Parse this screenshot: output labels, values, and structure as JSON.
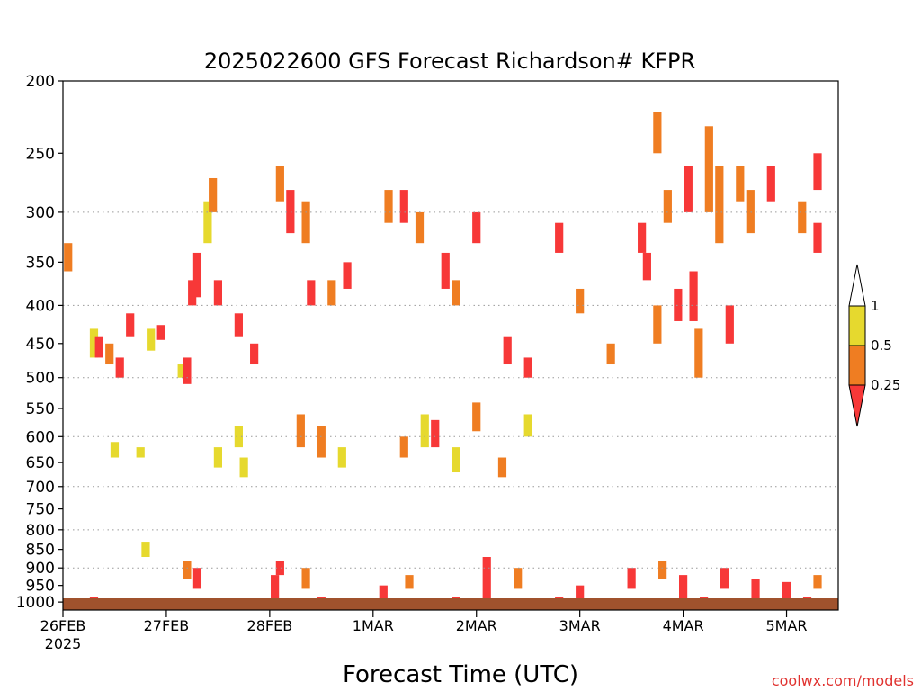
{
  "chart_data": {
    "type": "heatmap",
    "title": "2025022600 GFS Forecast Richardson# KFPR",
    "xlabel": "Forecast Time (UTC)",
    "ylabel": "",
    "credit": "coolwx.com/models",
    "x_start_label": "26FEB",
    "x_start_year": "2025",
    "x_ticks": [
      {
        "day": 0,
        "label": "26FEB"
      },
      {
        "day": 1,
        "label": "27FEB"
      },
      {
        "day": 2,
        "label": "28FEB"
      },
      {
        "day": 3,
        "label": "1MAR"
      },
      {
        "day": 4,
        "label": "2MAR"
      },
      {
        "day": 5,
        "label": "3MAR"
      },
      {
        "day": 6,
        "label": "4MAR"
      },
      {
        "day": 7,
        "label": "5MAR"
      }
    ],
    "xlim_days": [
      0,
      7.5
    ],
    "y_ticks_hpa": [
      200,
      250,
      300,
      350,
      400,
      450,
      500,
      550,
      600,
      650,
      700,
      750,
      800,
      850,
      900,
      950,
      1000
    ],
    "ylim_hpa": [
      200,
      1025
    ],
    "y_axis": "pressure",
    "dotted_grid_hpa": [
      300,
      400,
      500,
      600,
      700,
      800,
      900
    ],
    "colorbar": {
      "bins": [
        {
          "range": "> 1",
          "color": "#ffffff"
        },
        {
          "range": "0.5-1",
          "color": "#e6d92e"
        },
        {
          "range": "0.25-0.5",
          "color": "#ef7d22"
        },
        {
          "range": "< 0.25",
          "color": "#f73838"
        }
      ],
      "tick_labels": [
        "1",
        "0.5",
        "0.25"
      ]
    },
    "ground_color": "#a0522d",
    "cells": [
      {
        "t": 0.05,
        "p0": 330,
        "p1": 360,
        "v": "orange"
      },
      {
        "t": 0.3,
        "p0": 430,
        "p1": 470,
        "v": "yellow"
      },
      {
        "t": 0.35,
        "p0": 440,
        "p1": 470,
        "v": "red"
      },
      {
        "t": 0.45,
        "p0": 450,
        "p1": 480,
        "v": "orange"
      },
      {
        "t": 0.55,
        "p0": 470,
        "p1": 500,
        "v": "red"
      },
      {
        "t": 0.65,
        "p0": 410,
        "p1": 440,
        "v": "red"
      },
      {
        "t": 0.85,
        "p0": 430,
        "p1": 460,
        "v": "yellow"
      },
      {
        "t": 0.95,
        "p0": 425,
        "p1": 445,
        "v": "red"
      },
      {
        "t": 1.15,
        "p0": 480,
        "p1": 500,
        "v": "yellow"
      },
      {
        "t": 1.2,
        "p0": 470,
        "p1": 510,
        "v": "red"
      },
      {
        "t": 1.25,
        "p0": 370,
        "p1": 400,
        "v": "red"
      },
      {
        "t": 1.3,
        "p0": 340,
        "p1": 390,
        "v": "red"
      },
      {
        "t": 1.4,
        "p0": 290,
        "p1": 330,
        "v": "yellow"
      },
      {
        "t": 1.5,
        "p0": 370,
        "p1": 400,
        "v": "red"
      },
      {
        "t": 1.45,
        "p0": 270,
        "p1": 300,
        "v": "orange"
      },
      {
        "t": 1.7,
        "p0": 410,
        "p1": 440,
        "v": "red"
      },
      {
        "t": 1.85,
        "p0": 450,
        "p1": 480,
        "v": "red"
      },
      {
        "t": 2.1,
        "p0": 260,
        "p1": 290,
        "v": "orange"
      },
      {
        "t": 2.2,
        "p0": 280,
        "p1": 320,
        "v": "red"
      },
      {
        "t": 2.35,
        "p0": 290,
        "p1": 330,
        "v": "orange"
      },
      {
        "t": 2.4,
        "p0": 370,
        "p1": 400,
        "v": "red"
      },
      {
        "t": 2.6,
        "p0": 370,
        "p1": 400,
        "v": "orange"
      },
      {
        "t": 2.75,
        "p0": 350,
        "p1": 380,
        "v": "red"
      },
      {
        "t": 3.15,
        "p0": 280,
        "p1": 310,
        "v": "orange"
      },
      {
        "t": 3.3,
        "p0": 280,
        "p1": 310,
        "v": "red"
      },
      {
        "t": 3.45,
        "p0": 300,
        "p1": 330,
        "v": "orange"
      },
      {
        "t": 3.7,
        "p0": 340,
        "p1": 380,
        "v": "red"
      },
      {
        "t": 3.8,
        "p0": 370,
        "p1": 400,
        "v": "orange"
      },
      {
        "t": 4.0,
        "p0": 300,
        "p1": 330,
        "v": "red"
      },
      {
        "t": 4.3,
        "p0": 440,
        "p1": 480,
        "v": "red"
      },
      {
        "t": 4.5,
        "p0": 470,
        "p1": 500,
        "v": "red"
      },
      {
        "t": 4.8,
        "p0": 310,
        "p1": 340,
        "v": "red"
      },
      {
        "t": 5.0,
        "p0": 380,
        "p1": 410,
        "v": "orange"
      },
      {
        "t": 5.3,
        "p0": 450,
        "p1": 480,
        "v": "orange"
      },
      {
        "t": 5.6,
        "p0": 310,
        "p1": 340,
        "v": "red"
      },
      {
        "t": 5.65,
        "p0": 340,
        "p1": 370,
        "v": "red"
      },
      {
        "t": 5.75,
        "p0": 220,
        "p1": 250,
        "v": "orange"
      },
      {
        "t": 5.75,
        "p0": 400,
        "p1": 450,
        "v": "orange"
      },
      {
        "t": 5.85,
        "p0": 280,
        "p1": 310,
        "v": "orange"
      },
      {
        "t": 5.95,
        "p0": 380,
        "p1": 420,
        "v": "red"
      },
      {
        "t": 6.05,
        "p0": 260,
        "p1": 300,
        "v": "red"
      },
      {
        "t": 6.1,
        "p0": 360,
        "p1": 420,
        "v": "red"
      },
      {
        "t": 6.15,
        "p0": 430,
        "p1": 500,
        "v": "orange"
      },
      {
        "t": 6.25,
        "p0": 230,
        "p1": 300,
        "v": "orange"
      },
      {
        "t": 6.35,
        "p0": 260,
        "p1": 330,
        "v": "orange"
      },
      {
        "t": 6.45,
        "p0": 400,
        "p1": 450,
        "v": "red"
      },
      {
        "t": 6.55,
        "p0": 260,
        "p1": 290,
        "v": "orange"
      },
      {
        "t": 6.65,
        "p0": 280,
        "p1": 320,
        "v": "orange"
      },
      {
        "t": 6.85,
        "p0": 260,
        "p1": 290,
        "v": "red"
      },
      {
        "t": 7.15,
        "p0": 290,
        "p1": 320,
        "v": "orange"
      },
      {
        "t": 7.3,
        "p0": 310,
        "p1": 340,
        "v": "red"
      },
      {
        "t": 7.3,
        "p0": 250,
        "p1": 280,
        "v": "red"
      },
      {
        "t": 1.7,
        "p0": 580,
        "p1": 620,
        "v": "yellow"
      },
      {
        "t": 2.3,
        "p0": 560,
        "p1": 620,
        "v": "orange"
      },
      {
        "t": 2.5,
        "p0": 580,
        "p1": 640,
        "v": "orange"
      },
      {
        "t": 2.7,
        "p0": 620,
        "p1": 660,
        "v": "yellow"
      },
      {
        "t": 3.3,
        "p0": 600,
        "p1": 640,
        "v": "orange"
      },
      {
        "t": 3.5,
        "p0": 560,
        "p1": 620,
        "v": "yellow"
      },
      {
        "t": 3.6,
        "p0": 570,
        "p1": 620,
        "v": "red"
      },
      {
        "t": 3.8,
        "p0": 620,
        "p1": 670,
        "v": "yellow"
      },
      {
        "t": 4.0,
        "p0": 540,
        "p1": 590,
        "v": "orange"
      },
      {
        "t": 4.25,
        "p0": 640,
        "p1": 680,
        "v": "orange"
      },
      {
        "t": 4.5,
        "p0": 560,
        "p1": 600,
        "v": "yellow"
      },
      {
        "t": 0.5,
        "p0": 610,
        "p1": 640,
        "v": "yellow"
      },
      {
        "t": 0.75,
        "p0": 620,
        "p1": 640,
        "v": "yellow"
      },
      {
        "t": 1.5,
        "p0": 620,
        "p1": 660,
        "v": "yellow"
      },
      {
        "t": 1.75,
        "p0": 640,
        "p1": 680,
        "v": "yellow"
      },
      {
        "t": 0.8,
        "p0": 830,
        "p1": 870,
        "v": "yellow"
      },
      {
        "t": 1.2,
        "p0": 880,
        "p1": 930,
        "v": "orange"
      },
      {
        "t": 1.3,
        "p0": 900,
        "p1": 960,
        "v": "red"
      },
      {
        "t": 2.1,
        "p0": 880,
        "p1": 920,
        "v": "red"
      },
      {
        "t": 2.05,
        "p0": 920,
        "p1": 990,
        "v": "red"
      },
      {
        "t": 2.35,
        "p0": 900,
        "p1": 960,
        "v": "orange"
      },
      {
        "t": 3.1,
        "p0": 950,
        "p1": 990,
        "v": "red"
      },
      {
        "t": 3.35,
        "p0": 920,
        "p1": 960,
        "v": "orange"
      },
      {
        "t": 4.1,
        "p0": 870,
        "p1": 930,
        "v": "red"
      },
      {
        "t": 4.1,
        "p0": 930,
        "p1": 1000,
        "v": "red"
      },
      {
        "t": 4.4,
        "p0": 900,
        "p1": 960,
        "v": "orange"
      },
      {
        "t": 5.0,
        "p0": 950,
        "p1": 990,
        "v": "red"
      },
      {
        "t": 5.5,
        "p0": 900,
        "p1": 960,
        "v": "red"
      },
      {
        "t": 5.8,
        "p0": 880,
        "p1": 930,
        "v": "orange"
      },
      {
        "t": 6.0,
        "p0": 920,
        "p1": 990,
        "v": "red"
      },
      {
        "t": 6.4,
        "p0": 900,
        "p1": 960,
        "v": "red"
      },
      {
        "t": 6.7,
        "p0": 930,
        "p1": 990,
        "v": "red"
      },
      {
        "t": 7.0,
        "p0": 940,
        "p1": 990,
        "v": "red"
      },
      {
        "t": 7.3,
        "p0": 920,
        "p1": 960,
        "v": "orange"
      },
      {
        "t": 0.3,
        "p0": 985,
        "p1": 1010,
        "v": "red"
      },
      {
        "t": 1.0,
        "p0": 990,
        "p1": 1010,
        "v": "red"
      },
      {
        "t": 2.5,
        "p0": 985,
        "p1": 1010,
        "v": "red"
      },
      {
        "t": 3.8,
        "p0": 985,
        "p1": 1010,
        "v": "red"
      },
      {
        "t": 4.8,
        "p0": 985,
        "p1": 1010,
        "v": "red"
      },
      {
        "t": 6.2,
        "p0": 985,
        "p1": 1010,
        "v": "red"
      },
      {
        "t": 7.2,
        "p0": 985,
        "p1": 1010,
        "v": "red"
      }
    ]
  }
}
